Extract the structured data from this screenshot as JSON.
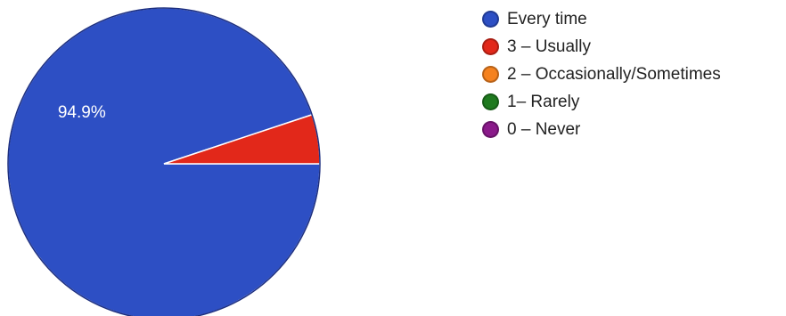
{
  "chart_data": {
    "type": "pie",
    "title": "",
    "slices": [
      {
        "label": "Every time",
        "value": 94.9,
        "color": "#2d4fc4",
        "display_label": "94.9%"
      },
      {
        "label": "3 – Usually",
        "value": 5.1,
        "color": "#e2281a",
        "display_label": ""
      },
      {
        "label": "2 – Occasionally/Sometimes",
        "value": 0,
        "color": "#f5821f",
        "display_label": ""
      },
      {
        "label": "1– Rarely",
        "value": 0,
        "color": "#1f7a1f",
        "display_label": ""
      },
      {
        "label": "0 – Never",
        "value": 0,
        "color": "#8a1a8a",
        "display_label": ""
      }
    ],
    "legend_position": "right"
  }
}
